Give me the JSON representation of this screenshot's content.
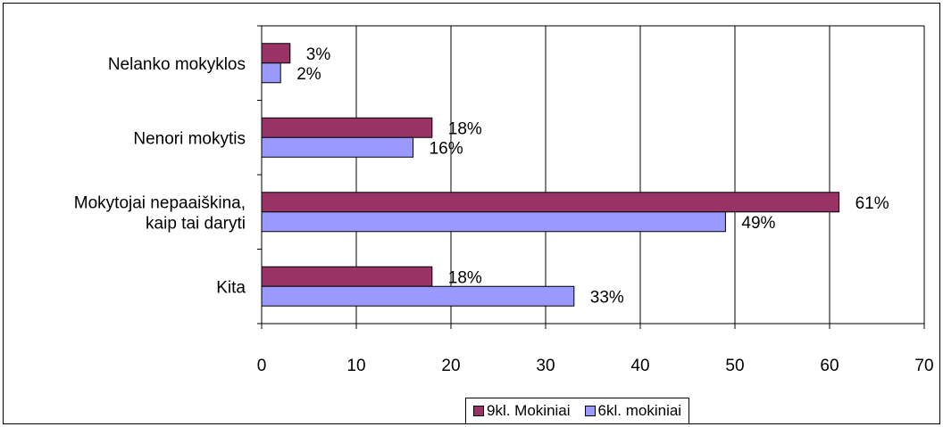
{
  "chart_data": {
    "type": "bar",
    "orientation": "horizontal",
    "categories": [
      "Nelanko mokyklos",
      "Nenori mokytis",
      "Mokytojai nepaaiškina, kaip tai daryti",
      "Kita"
    ],
    "category_lines": [
      [
        "Nelanko mokyklos"
      ],
      [
        "Nenori mokytis"
      ],
      [
        "Mokytojai nepaaiškina,",
        "kaip tai daryti"
      ],
      [
        "Kita"
      ]
    ],
    "series": [
      {
        "name": "9kl. Mokiniai",
        "values": [
          3,
          18,
          61,
          18
        ],
        "labels": [
          "3%",
          "18%",
          "61%",
          "18%"
        ],
        "color": "#993366"
      },
      {
        "name": "6kl. mokiniai",
        "values": [
          2,
          16,
          49,
          33
        ],
        "labels": [
          "2%",
          "16%",
          "49%",
          "33%"
        ],
        "color": "#9999ff"
      }
    ],
    "xlim": [
      0,
      70
    ],
    "xticks": [
      0,
      10,
      20,
      30,
      40,
      50,
      60,
      70
    ],
    "grid": "vertical",
    "legend": "bottom"
  }
}
